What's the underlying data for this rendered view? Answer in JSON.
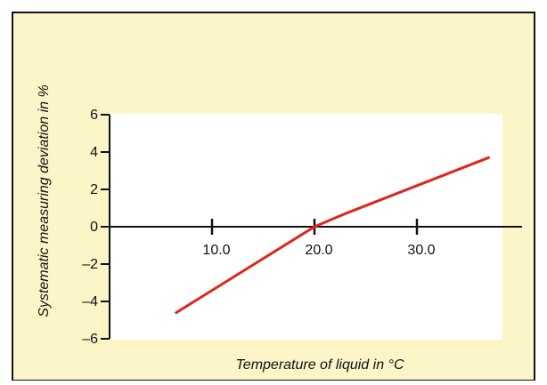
{
  "colors": {
    "frame_background": "#FBF5C8",
    "plot_background": "#FFFFFF",
    "border": "#111111",
    "axis": "#111111",
    "series_line": "#E0251B"
  },
  "chart_data": {
    "type": "line",
    "title": "",
    "xlabel": "Temperature of liquid in °C",
    "ylabel": "Systematic measuring deviation in %",
    "xlim": [
      0,
      40
    ],
    "ylim": [
      -6,
      6
    ],
    "grid": false,
    "x_ticks": [
      10,
      20,
      30
    ],
    "x_tick_labels": [
      "10.0",
      "20.0",
      "30.0"
    ],
    "y_ticks": [
      6,
      4,
      2,
      0,
      -2,
      -4,
      -6
    ],
    "y_tick_labels": [
      "6",
      "4",
      "2",
      "0",
      "–2",
      "–4",
      "–6"
    ],
    "series": [
      {
        "points": [
          [
            6.5,
            -4.6
          ],
          [
            20,
            0
          ],
          [
            23,
            0.7
          ],
          [
            37,
            3.7
          ]
        ]
      }
    ]
  }
}
